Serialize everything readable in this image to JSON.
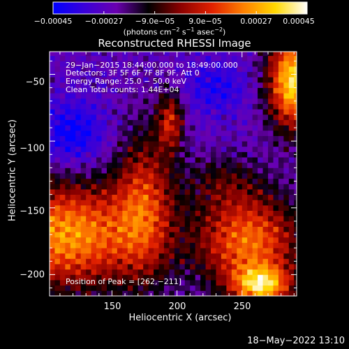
{
  "chart_data": {
    "type": "heatmap",
    "title": "Reconstructed RHESSI Image",
    "xlabel": "Heliocentric X (arcsec)",
    "ylabel": "Heliocentric Y (arcsec)",
    "xlim": [
      102,
      292
    ],
    "ylim": [
      -216,
      -33
    ],
    "x_ticks": [
      150,
      200,
      250
    ],
    "x_tick_labels": [
      "150",
      "200",
      "250"
    ],
    "y_ticks": [
      -50,
      -100,
      -150,
      -200
    ],
    "y_tick_labels": [
      "−50",
      "−100",
      "−150",
      "−200"
    ],
    "colorbar": {
      "range": [
        -0.00045,
        0.00045
      ],
      "tick_values": [
        -0.00045,
        -0.00027,
        -9e-05,
        9e-05,
        0.00027,
        0.00045
      ],
      "tick_labels": [
        "−0.00045",
        "−0.00027",
        "−9.0e−05",
        "9.0e−05",
        "0.00027",
        "0.00045"
      ],
      "units_prefix": "(photons cm",
      "units_exp1": "−2",
      "units_mid": " s",
      "units_exp2": "−1",
      "units_mid2": " asec",
      "units_exp3": "−2",
      "units_suffix": ")",
      "colormap": [
        "#0000ff",
        "#3a00d8",
        "#6a00b0",
        "#000000",
        "#8a0000",
        "#e02000",
        "#ff8000",
        "#ffd800",
        "#ffffff"
      ]
    },
    "annotations": [
      "29−Jan−2015 18:44:00.000 to 18:49:00.000",
      "Detectors: 3F 5F 6F 7F 8F 9F, Att 0",
      "Energy Range: 25.0 − 50.0 keV",
      "Clean     Total counts: 1.44E+04"
    ],
    "peak_label": "Position of Peak = [262,−211]",
    "peak_position": [
      262,
      -211
    ],
    "grid": false
  },
  "timestamp": "18−May−2022 13:10"
}
